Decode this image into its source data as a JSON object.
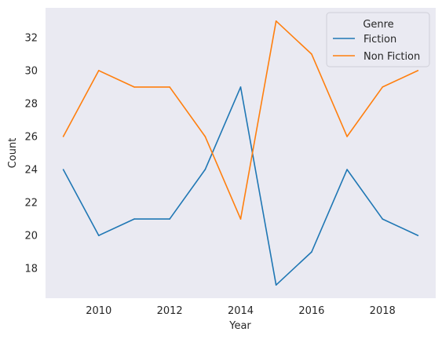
{
  "chart_data": {
    "type": "line",
    "xlabel": "Year",
    "ylabel": "Count",
    "x": [
      2009,
      2010,
      2011,
      2012,
      2013,
      2014,
      2015,
      2016,
      2017,
      2018,
      2019
    ],
    "xlim": [
      2008.5,
      2019.5
    ],
    "ylim": [
      16.2,
      33.8
    ],
    "xticks": [
      2010,
      2012,
      2014,
      2016,
      2018
    ],
    "yticks": [
      18,
      20,
      22,
      24,
      26,
      28,
      30,
      32
    ],
    "grid": false,
    "legend": {
      "title": "Genre",
      "placement": "top-right"
    },
    "series": [
      {
        "name": "Fiction",
        "color": "#1f77b4",
        "values": [
          24,
          20,
          21,
          21,
          24,
          29,
          17,
          19,
          24,
          21,
          20
        ]
      },
      {
        "name": "Non Fiction",
        "color": "#ff7f0e",
        "values": [
          26,
          30,
          29,
          29,
          26,
          21,
          33,
          31,
          26,
          29,
          30
        ]
      }
    ]
  }
}
